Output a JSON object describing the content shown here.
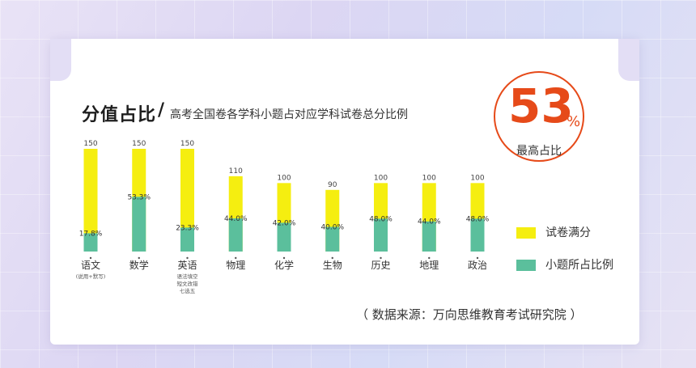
{
  "header": {
    "title": "分值占比",
    "slash": "/",
    "subtitle": "高考全国卷各学科小题占对应学科试卷总分比例"
  },
  "badge": {
    "value": "53",
    "unit": "%",
    "label": "最高占比"
  },
  "colors": {
    "full_score": "#f5ee10",
    "small_questions": "#5bbf9c",
    "badge": "#e64a19"
  },
  "chart_data": {
    "type": "bar",
    "categories": [
      "语文",
      "数学",
      "英语",
      "物理",
      "化学",
      "生物",
      "历史",
      "地理",
      "政治"
    ],
    "category_notes": [
      [
        "(说用+默写)"
      ],
      [],
      [
        "语法填空",
        "短文改错",
        "七选五"
      ],
      [],
      [],
      [],
      [],
      [],
      []
    ],
    "series": [
      {
        "name": "试卷满分",
        "values": [
          150,
          150,
          150,
          110,
          100,
          90,
          100,
          100,
          100
        ]
      },
      {
        "name": "小题所占比例",
        "values": [
          17.8,
          53.3,
          23.3,
          44.0,
          42.0,
          40.0,
          48.0,
          44.0,
          48.0
        ]
      }
    ],
    "value_labels": [
      "150",
      "150",
      "150",
      "110",
      "100",
      "90",
      "100",
      "100",
      "100"
    ],
    "percent_labels": [
      "17.8%",
      "53.3%",
      "23.3%",
      "44.0%",
      "42.0%",
      "40.0%",
      "48.0%",
      "44.0%",
      "48.0%"
    ],
    "ylim": [
      0,
      150
    ],
    "grid": false,
    "legend_position": "right"
  },
  "legend": {
    "items": [
      "试卷满分",
      "小题所占比例"
    ]
  },
  "source": "（ 数据来源：万向思维教育考试研究院 ）"
}
